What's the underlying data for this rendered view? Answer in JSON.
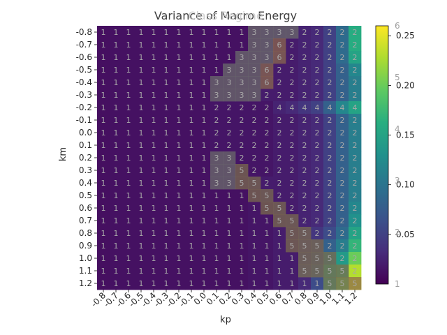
{
  "chart_data": {
    "type": "heatmap",
    "title": "Variance of Macro Energy",
    "overlay_title": "Class Regime",
    "xlabel": "kp",
    "ylabel": "km",
    "x": [
      "-0.8",
      "-0.7",
      "-0.6",
      "-0.5",
      "-0.4",
      "-0.3",
      "-0.2",
      "-0.1",
      "0.0",
      "0.1",
      "0.2",
      "0.3",
      "0.4",
      "0.5",
      "0.6",
      "0.7",
      "0.8",
      "0.9",
      "1.0",
      "1.1",
      "1.2"
    ],
    "y": [
      "-0.8",
      "-0.7",
      "-0.6",
      "-0.5",
      "-0.4",
      "-0.3",
      "-0.2",
      "-0.1",
      "0.0",
      "0.1",
      "0.2",
      "0.3",
      "0.4",
      "0.5",
      "0.6",
      "0.7",
      "0.8",
      "0.9",
      "1.0",
      "1.1",
      "1.2"
    ],
    "colormap": "viridis",
    "colorbar": {
      "range": [
        0,
        0.26
      ],
      "ticks": [
        0.05,
        0.1,
        0.15,
        0.2,
        0.25
      ],
      "class_range": [
        1,
        6
      ],
      "class_ticks": [
        1,
        2,
        3,
        4,
        5,
        6
      ]
    },
    "values": [
      [
        0.01,
        0.012,
        0.012,
        0.012,
        0.012,
        0.012,
        0.012,
        0.012,
        0.012,
        0.012,
        0.012,
        0.012,
        0.015,
        0.02,
        0.02,
        0.02,
        0.025,
        0.03,
        0.05,
        0.09,
        0.16
      ],
      [
        0.01,
        0.012,
        0.012,
        0.012,
        0.012,
        0.012,
        0.012,
        0.012,
        0.012,
        0.012,
        0.012,
        0.012,
        0.015,
        0.02,
        0.03,
        0.02,
        0.025,
        0.03,
        0.05,
        0.09,
        0.16
      ],
      [
        0.01,
        0.012,
        0.012,
        0.012,
        0.012,
        0.012,
        0.012,
        0.012,
        0.012,
        0.012,
        0.012,
        0.015,
        0.015,
        0.02,
        0.035,
        0.02,
        0.025,
        0.03,
        0.05,
        0.09,
        0.15
      ],
      [
        0.01,
        0.012,
        0.012,
        0.012,
        0.012,
        0.012,
        0.012,
        0.012,
        0.012,
        0.012,
        0.015,
        0.015,
        0.015,
        0.035,
        0.02,
        0.02,
        0.025,
        0.03,
        0.05,
        0.08,
        0.12
      ],
      [
        0.01,
        0.012,
        0.012,
        0.012,
        0.012,
        0.012,
        0.012,
        0.012,
        0.012,
        0.015,
        0.015,
        0.015,
        0.015,
        0.035,
        0.02,
        0.02,
        0.025,
        0.03,
        0.05,
        0.08,
        0.11
      ],
      [
        0.01,
        0.012,
        0.012,
        0.012,
        0.012,
        0.012,
        0.012,
        0.012,
        0.012,
        0.015,
        0.015,
        0.015,
        0.015,
        0.02,
        0.02,
        0.02,
        0.025,
        0.03,
        0.05,
        0.08,
        0.11
      ],
      [
        0.01,
        0.012,
        0.012,
        0.012,
        0.012,
        0.012,
        0.012,
        0.012,
        0.012,
        0.015,
        0.015,
        0.015,
        0.015,
        0.015,
        0.025,
        0.03,
        0.04,
        0.05,
        0.08,
        0.12,
        0.15
      ],
      [
        0.01,
        0.012,
        0.012,
        0.012,
        0.012,
        0.012,
        0.012,
        0.012,
        0.012,
        0.015,
        0.015,
        0.015,
        0.015,
        0.015,
        0.02,
        0.02,
        0.025,
        0.03,
        0.05,
        0.08,
        0.11
      ],
      [
        0.01,
        0.012,
        0.012,
        0.012,
        0.012,
        0.012,
        0.012,
        0.012,
        0.012,
        0.015,
        0.015,
        0.015,
        0.015,
        0.015,
        0.02,
        0.02,
        0.025,
        0.03,
        0.05,
        0.08,
        0.11
      ],
      [
        0.01,
        0.012,
        0.012,
        0.012,
        0.012,
        0.012,
        0.012,
        0.012,
        0.012,
        0.015,
        0.015,
        0.015,
        0.015,
        0.015,
        0.02,
        0.02,
        0.025,
        0.03,
        0.05,
        0.08,
        0.11
      ],
      [
        0.01,
        0.012,
        0.012,
        0.012,
        0.012,
        0.012,
        0.012,
        0.012,
        0.012,
        0.015,
        0.015,
        0.015,
        0.015,
        0.015,
        0.02,
        0.02,
        0.025,
        0.03,
        0.05,
        0.08,
        0.11
      ],
      [
        0.01,
        0.012,
        0.012,
        0.012,
        0.012,
        0.012,
        0.012,
        0.012,
        0.012,
        0.015,
        0.015,
        0.015,
        0.015,
        0.015,
        0.02,
        0.02,
        0.025,
        0.03,
        0.05,
        0.08,
        0.11
      ],
      [
        0.01,
        0.012,
        0.012,
        0.012,
        0.012,
        0.012,
        0.012,
        0.012,
        0.012,
        0.015,
        0.015,
        0.015,
        0.02,
        0.02,
        0.02,
        0.02,
        0.025,
        0.03,
        0.05,
        0.08,
        0.11
      ],
      [
        0.01,
        0.012,
        0.012,
        0.012,
        0.012,
        0.012,
        0.012,
        0.012,
        0.012,
        0.012,
        0.012,
        0.012,
        0.015,
        0.025,
        0.02,
        0.02,
        0.025,
        0.03,
        0.05,
        0.08,
        0.11
      ],
      [
        0.01,
        0.012,
        0.012,
        0.012,
        0.012,
        0.012,
        0.012,
        0.012,
        0.012,
        0.012,
        0.012,
        0.012,
        0.015,
        0.015,
        0.025,
        0.02,
        0.025,
        0.03,
        0.05,
        0.08,
        0.12
      ],
      [
        0.01,
        0.012,
        0.012,
        0.012,
        0.012,
        0.012,
        0.012,
        0.012,
        0.012,
        0.012,
        0.012,
        0.012,
        0.015,
        0.015,
        0.02,
        0.025,
        0.025,
        0.03,
        0.05,
        0.08,
        0.13
      ],
      [
        0.01,
        0.012,
        0.012,
        0.012,
        0.012,
        0.012,
        0.012,
        0.012,
        0.012,
        0.012,
        0.012,
        0.012,
        0.015,
        0.015,
        0.02,
        0.02,
        0.035,
        0.04,
        0.06,
        0.09,
        0.15
      ],
      [
        0.01,
        0.012,
        0.012,
        0.012,
        0.012,
        0.012,
        0.012,
        0.012,
        0.012,
        0.012,
        0.012,
        0.012,
        0.015,
        0.015,
        0.02,
        0.02,
        0.04,
        0.05,
        0.08,
        0.11,
        0.17
      ],
      [
        0.01,
        0.012,
        0.012,
        0.012,
        0.012,
        0.012,
        0.012,
        0.012,
        0.012,
        0.012,
        0.012,
        0.012,
        0.015,
        0.015,
        0.02,
        0.02,
        0.045,
        0.06,
        0.11,
        0.14,
        0.2
      ],
      [
        0.01,
        0.012,
        0.012,
        0.012,
        0.012,
        0.012,
        0.012,
        0.012,
        0.012,
        0.012,
        0.012,
        0.012,
        0.015,
        0.015,
        0.02,
        0.02,
        0.05,
        0.07,
        0.15,
        0.17,
        0.23
      ],
      [
        0.01,
        0.012,
        0.012,
        0.012,
        0.012,
        0.012,
        0.012,
        0.012,
        0.012,
        0.012,
        0.012,
        0.012,
        0.015,
        0.015,
        0.02,
        0.02,
        0.03,
        0.06,
        0.15,
        0.2,
        0.26
      ]
    ],
    "labels": [
      [
        1,
        1,
        1,
        1,
        1,
        1,
        1,
        1,
        1,
        1,
        1,
        1,
        3,
        3,
        3,
        3,
        2,
        2,
        2,
        2,
        2
      ],
      [
        1,
        1,
        1,
        1,
        1,
        1,
        1,
        1,
        1,
        1,
        1,
        1,
        3,
        3,
        6,
        2,
        2,
        2,
        2,
        2,
        2
      ],
      [
        1,
        1,
        1,
        1,
        1,
        1,
        1,
        1,
        1,
        1,
        1,
        3,
        3,
        3,
        6,
        2,
        2,
        2,
        2,
        2,
        2
      ],
      [
        1,
        1,
        1,
        1,
        1,
        1,
        1,
        1,
        1,
        1,
        3,
        3,
        3,
        6,
        2,
        2,
        2,
        2,
        2,
        2,
        2
      ],
      [
        1,
        1,
        1,
        1,
        1,
        1,
        1,
        1,
        1,
        3,
        3,
        3,
        3,
        6,
        2,
        2,
        2,
        2,
        2,
        2,
        2
      ],
      [
        1,
        1,
        1,
        1,
        1,
        1,
        1,
        1,
        1,
        3,
        3,
        3,
        3,
        2,
        2,
        2,
        2,
        2,
        2,
        2,
        2
      ],
      [
        1,
        1,
        1,
        1,
        1,
        1,
        1,
        1,
        1,
        2,
        2,
        2,
        2,
        2,
        4,
        4,
        4,
        4,
        4,
        4,
        4
      ],
      [
        1,
        1,
        1,
        1,
        1,
        1,
        1,
        1,
        1,
        2,
        2,
        2,
        2,
        2,
        2,
        2,
        2,
        2,
        2,
        2,
        2
      ],
      [
        1,
        1,
        1,
        1,
        1,
        1,
        1,
        1,
        1,
        2,
        2,
        2,
        2,
        2,
        2,
        2,
        2,
        2,
        2,
        2,
        2
      ],
      [
        1,
        1,
        1,
        1,
        1,
        1,
        1,
        1,
        1,
        2,
        2,
        2,
        2,
        2,
        2,
        2,
        2,
        2,
        2,
        2,
        2
      ],
      [
        1,
        1,
        1,
        1,
        1,
        1,
        1,
        1,
        1,
        3,
        3,
        2,
        2,
        2,
        2,
        2,
        2,
        2,
        2,
        2,
        2
      ],
      [
        1,
        1,
        1,
        1,
        1,
        1,
        1,
        1,
        1,
        3,
        3,
        5,
        2,
        2,
        2,
        2,
        2,
        2,
        2,
        2,
        2
      ],
      [
        1,
        1,
        1,
        1,
        1,
        1,
        1,
        1,
        1,
        3,
        3,
        5,
        5,
        2,
        2,
        2,
        2,
        2,
        2,
        2,
        2
      ],
      [
        1,
        1,
        1,
        1,
        1,
        1,
        1,
        1,
        1,
        1,
        1,
        1,
        5,
        5,
        2,
        2,
        2,
        2,
        2,
        2,
        2
      ],
      [
        1,
        1,
        1,
        1,
        1,
        1,
        1,
        1,
        1,
        1,
        1,
        1,
        1,
        5,
        5,
        2,
        2,
        2,
        2,
        2,
        2
      ],
      [
        1,
        1,
        1,
        1,
        1,
        1,
        1,
        1,
        1,
        1,
        1,
        1,
        1,
        1,
        5,
        5,
        2,
        2,
        2,
        2,
        2
      ],
      [
        1,
        1,
        1,
        1,
        1,
        1,
        1,
        1,
        1,
        1,
        1,
        1,
        1,
        1,
        1,
        5,
        5,
        2,
        2,
        2,
        2
      ],
      [
        1,
        1,
        1,
        1,
        1,
        1,
        1,
        1,
        1,
        1,
        1,
        1,
        1,
        1,
        1,
        5,
        5,
        5,
        2,
        2,
        2
      ],
      [
        1,
        1,
        1,
        1,
        1,
        1,
        1,
        1,
        1,
        1,
        1,
        1,
        1,
        1,
        1,
        1,
        5,
        5,
        5,
        2,
        2
      ],
      [
        1,
        1,
        1,
        1,
        1,
        1,
        1,
        1,
        1,
        1,
        1,
        1,
        1,
        1,
        1,
        1,
        5,
        5,
        5,
        5,
        2
      ],
      [
        1,
        1,
        1,
        1,
        1,
        1,
        1,
        1,
        1,
        1,
        1,
        1,
        1,
        1,
        1,
        1,
        1,
        1,
        5,
        5,
        5
      ]
    ],
    "overlay_colors": {
      "3": "#6b6b6b",
      "5": "#7a6a4e",
      "6": "#8a6248"
    }
  }
}
